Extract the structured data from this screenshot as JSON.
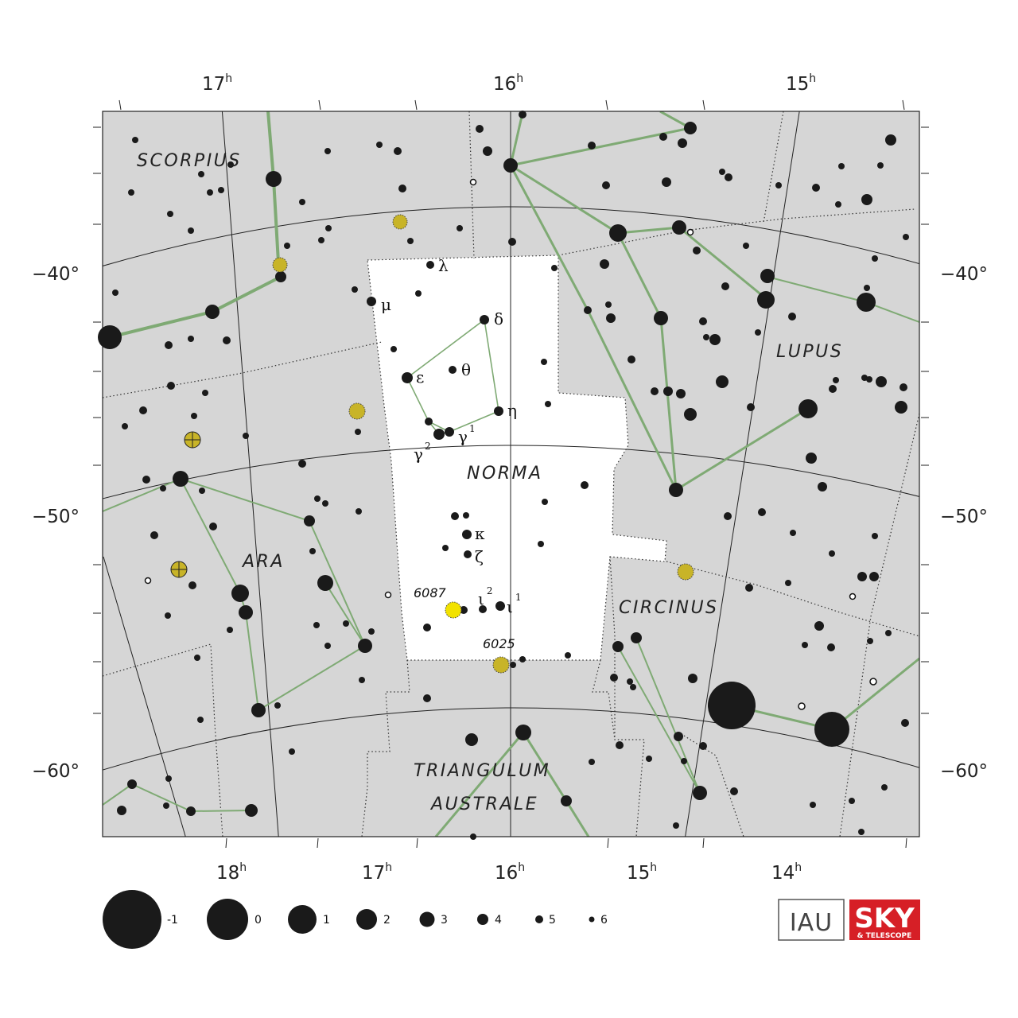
{
  "colors": {
    "background": "#d6d6d6",
    "highlight": "#ffffff",
    "star": "#1a1a1a",
    "line": "#7faa74",
    "grid": "#222222",
    "cluster_yellow": "#f2e200",
    "galaxy_yellow": "#c8b428",
    "sky_red": "#d61f26"
  },
  "ra_top": [
    {
      "h": "17",
      "unit": "h"
    },
    {
      "h": "16",
      "unit": "h"
    },
    {
      "h": "15",
      "unit": "h"
    }
  ],
  "ra_bottom": [
    {
      "h": "18",
      "unit": "h"
    },
    {
      "h": "17",
      "unit": "h"
    },
    {
      "h": "16",
      "unit": "h"
    },
    {
      "h": "15",
      "unit": "h"
    },
    {
      "h": "14",
      "unit": "h"
    }
  ],
  "dec_left": [
    "−40°",
    "−50°",
    "−60°"
  ],
  "dec_right": [
    "−40°",
    "−50°",
    "−60°"
  ],
  "constellations": {
    "scorpius": "SCORPIUS",
    "lupus": "LUPUS",
    "norma": "NORMA",
    "ara": "ARA",
    "circinus": "CIRCINUS",
    "triangulum": "TRIANGULUM",
    "australe": "AUSTRALE"
  },
  "star_labels": {
    "lambda": "λ",
    "mu": "μ",
    "delta": "δ",
    "epsilon": "ε",
    "theta": "θ",
    "eta": "η",
    "gamma2": "γ",
    "gamma2_sup": "2",
    "gamma1": "γ",
    "gamma1_sup": "1",
    "kappa": "κ",
    "zeta": "ζ",
    "iota2": "ι",
    "iota2_sup": "2",
    "iota1": "ι",
    "iota1_sup": "1"
  },
  "clusters": {
    "ngc6087": "6087",
    "ngc6025": "6025"
  },
  "legend": {
    "magnitudes": [
      "-1",
      "0",
      "1",
      "2",
      "3",
      "4",
      "5",
      "6"
    ]
  },
  "logos": {
    "iau": "IAU",
    "sky": "SKY",
    "telescope": "& TELESCOPE"
  }
}
